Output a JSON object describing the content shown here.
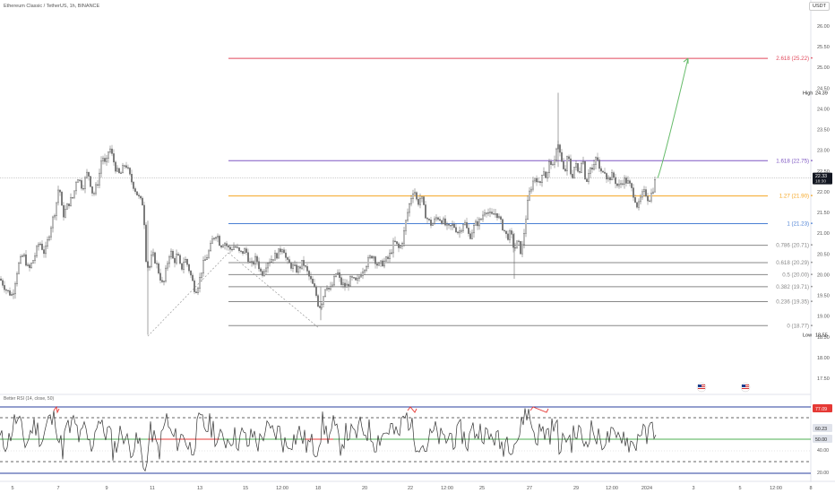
{
  "header": {
    "symbol_title": "Ethereum Classic / TetherUS, 1h, BINANCE",
    "currency": "USDT"
  },
  "colors": {
    "candle_up": "#555555",
    "candle_down": "#777777",
    "fib_618": "#e0485b",
    "fib_1618": "#7e57c2",
    "fib_127": "#f5a623",
    "fib_1": "#4a7fd4",
    "fib_gray": "#888888",
    "arrow": "#66bb6a",
    "rsi_line": "#333333",
    "rsi_band": "#2a3f9d",
    "rsi_mid_green": "#4caf50",
    "rsi_mid_red": "#e53935"
  },
  "price_axis": {
    "ticks": [
      "26.00",
      "25.50",
      "25.00",
      "24.50",
      "24.00",
      "23.50",
      "23.00",
      "22.50",
      "22.00",
      "21.50",
      "21.00",
      "20.50",
      "20.00",
      "19.50",
      "19.00",
      "18.50",
      "18.00",
      "17.50"
    ],
    "high_label": "High",
    "high_value": "24.39",
    "low_label": "Low",
    "low_value": "18.55",
    "current_price": "22.33",
    "current_time": "18:30"
  },
  "fib_levels": [
    {
      "label": "2.618 (25.22)",
      "price": 25.22,
      "color": "#e0485b"
    },
    {
      "label": "1.618 (22.75)",
      "price": 22.75,
      "color": "#7e57c2"
    },
    {
      "label": "1.27 (21.90)",
      "price": 21.9,
      "color": "#f5a623"
    },
    {
      "label": "1 (21.23)",
      "price": 21.23,
      "color": "#4a7fd4"
    },
    {
      "label": "0.786 (20.71)",
      "price": 20.71,
      "color": "#888888"
    },
    {
      "label": "0.618 (20.29)",
      "price": 20.29,
      "color": "#888888"
    },
    {
      "label": "0.5 (20.00)",
      "price": 20.0,
      "color": "#888888"
    },
    {
      "label": "0.382 (19.71)",
      "price": 19.71,
      "color": "#888888"
    },
    {
      "label": "0.236 (19.35)",
      "price": 19.35,
      "color": "#888888"
    },
    {
      "label": "0 (18.77)",
      "price": 18.77,
      "color": "#888888"
    }
  ],
  "time_axis": [
    "5",
    "7",
    "9",
    "11",
    "13",
    "15",
    "12:00",
    "18",
    "20",
    "22",
    "12:00",
    "25",
    "27",
    "29",
    "12:00",
    "2024",
    "3",
    "5",
    "12:00",
    "8"
  ],
  "rsi": {
    "title": "Better RSI (14, close, 50)",
    "upper_value": "77.09",
    "current_value": "60.23",
    "mid_value": "50.00",
    "ticks": [
      "40.00",
      "20.00"
    ]
  },
  "chart_data": {
    "type": "candlestick",
    "title": "Ethereum Classic / TetherUS, 1h, BINANCE",
    "ylim": [
      17.3,
      26.4
    ],
    "close_path": [
      [
        0,
        19.9
      ],
      [
        8,
        19.6
      ],
      [
        14,
        19.5
      ],
      [
        20,
        20.2
      ],
      [
        26,
        20.5
      ],
      [
        32,
        20.1
      ],
      [
        38,
        20.4
      ],
      [
        44,
        20.8
      ],
      [
        50,
        20.5
      ],
      [
        56,
        21.1
      ],
      [
        62,
        21.6
      ],
      [
        66,
        22.2
      ],
      [
        70,
        21.4
      ],
      [
        76,
        21.7
      ],
      [
        82,
        21.9
      ],
      [
        86,
        22.4
      ],
      [
        92,
        22.1
      ],
      [
        98,
        22.5
      ],
      [
        104,
        21.9
      ],
      [
        110,
        22.3
      ],
      [
        114,
        22.9
      ],
      [
        118,
        22.6
      ],
      [
        122,
        23.1
      ],
      [
        126,
        22.8
      ],
      [
        130,
        22.5
      ],
      [
        134,
        22.4
      ],
      [
        140,
        22.7
      ],
      [
        146,
        22.3
      ],
      [
        152,
        22.0
      ],
      [
        156,
        21.8
      ],
      [
        160,
        21.7
      ],
      [
        163,
        20.4
      ],
      [
        166,
        20.1
      ],
      [
        170,
        20.5
      ],
      [
        174,
        20.3
      ],
      [
        178,
        20.0
      ],
      [
        182,
        19.7
      ],
      [
        186,
        20.2
      ],
      [
        190,
        20.6
      ],
      [
        194,
        20.3
      ],
      [
        198,
        20.5
      ],
      [
        202,
        20.1
      ],
      [
        206,
        20.4
      ],
      [
        210,
        20.2
      ],
      [
        214,
        19.9
      ],
      [
        218,
        19.6
      ],
      [
        222,
        19.8
      ],
      [
        226,
        20.2
      ],
      [
        230,
        20.4
      ],
      [
        234,
        20.6
      ],
      [
        238,
        20.9
      ],
      [
        242,
        21.0
      ],
      [
        246,
        20.7
      ],
      [
        250,
        20.8
      ],
      [
        256,
        20.6
      ],
      [
        262,
        20.7
      ],
      [
        268,
        20.5
      ],
      [
        274,
        20.6
      ],
      [
        280,
        20.2
      ],
      [
        286,
        20.4
      ],
      [
        292,
        20.0
      ],
      [
        298,
        20.3
      ],
      [
        304,
        20.4
      ],
      [
        310,
        20.5
      ],
      [
        316,
        20.7
      ],
      [
        320,
        20.3
      ],
      [
        326,
        20.2
      ],
      [
        332,
        20.1
      ],
      [
        338,
        20.3
      ],
      [
        344,
        20.0
      ],
      [
        348,
        19.8
      ],
      [
        352,
        19.6
      ],
      [
        356,
        19.2
      ],
      [
        360,
        19.4
      ],
      [
        364,
        19.8
      ],
      [
        368,
        19.6
      ],
      [
        372,
        19.8
      ],
      [
        376,
        20.1
      ],
      [
        380,
        19.8
      ],
      [
        386,
        19.7
      ],
      [
        392,
        19.9
      ],
      [
        398,
        19.8
      ],
      [
        404,
        20.1
      ],
      [
        410,
        20.3
      ],
      [
        416,
        20.5
      ],
      [
        422,
        20.2
      ],
      [
        428,
        20.3
      ],
      [
        434,
        20.4
      ],
      [
        440,
        20.8
      ],
      [
        446,
        20.6
      ],
      [
        450,
        20.9
      ],
      [
        454,
        21.4
      ],
      [
        458,
        21.8
      ],
      [
        462,
        22.1
      ],
      [
        466,
        21.7
      ],
      [
        470,
        21.9
      ],
      [
        474,
        21.5
      ],
      [
        478,
        21.3
      ],
      [
        482,
        21.2
      ],
      [
        488,
        21.4
      ],
      [
        494,
        21.3
      ],
      [
        500,
        21.1
      ],
      [
        506,
        21.2
      ],
      [
        512,
        21.0
      ],
      [
        518,
        21.3
      ],
      [
        524,
        20.9
      ],
      [
        530,
        21.2
      ],
      [
        536,
        21.3
      ],
      [
        542,
        21.6
      ],
      [
        548,
        21.4
      ],
      [
        554,
        21.5
      ],
      [
        560,
        21.2
      ],
      [
        566,
        20.9
      ],
      [
        570,
        21.0
      ],
      [
        574,
        20.6
      ],
      [
        578,
        20.8
      ],
      [
        582,
        20.5
      ],
      [
        586,
        21.2
      ],
      [
        590,
        21.9
      ],
      [
        594,
        22.2
      ],
      [
        598,
        22.4
      ],
      [
        602,
        22.1
      ],
      [
        606,
        22.6
      ],
      [
        610,
        22.3
      ],
      [
        614,
        22.8
      ],
      [
        618,
        22.5
      ],
      [
        622,
        23.3
      ],
      [
        626,
        22.8
      ],
      [
        630,
        22.4
      ],
      [
        634,
        22.9
      ],
      [
        638,
        22.3
      ],
      [
        642,
        22.7
      ],
      [
        646,
        22.4
      ],
      [
        650,
        22.9
      ],
      [
        654,
        22.2
      ],
      [
        658,
        22.6
      ],
      [
        662,
        22.5
      ],
      [
        666,
        22.9
      ],
      [
        670,
        22.4
      ],
      [
        674,
        22.6
      ],
      [
        678,
        22.3
      ],
      [
        684,
        22.4
      ],
      [
        690,
        22.1
      ],
      [
        696,
        22.3
      ],
      [
        702,
        22.2
      ],
      [
        708,
        21.9
      ],
      [
        712,
        21.6
      ],
      [
        716,
        21.9
      ],
      [
        720,
        22.0
      ],
      [
        724,
        21.8
      ],
      [
        728,
        22.0
      ],
      [
        732,
        22.33
      ]
    ]
  }
}
